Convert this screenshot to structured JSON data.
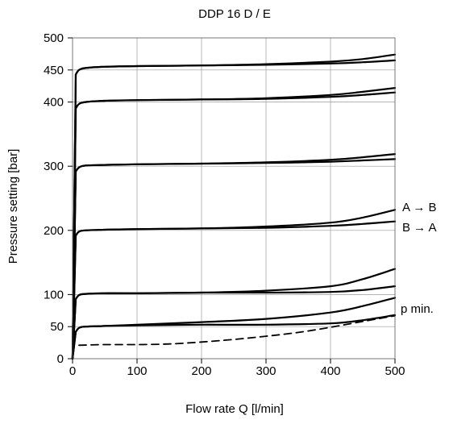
{
  "chart_data": {
    "type": "line",
    "title": "DDP 16 D / E",
    "xlabel": "Flow rate Q [l/min]",
    "ylabel": "Pressure setting [bar]",
    "xlim": [
      0,
      500
    ],
    "ylim": [
      0,
      500
    ],
    "x_ticks": [
      "0",
      "100",
      "200",
      "300",
      "400",
      "500"
    ],
    "y_ticks": [
      "0",
      "50",
      "100",
      "200",
      "300",
      "400",
      "450",
      "500"
    ],
    "grid": true,
    "annotations": {
      "a_to_b": "A → B",
      "b_to_a": "B → A",
      "p_min": "p min."
    },
    "series": [
      {
        "group": "450",
        "direction": "A→B",
        "style": "solid",
        "x": [
          0,
          5,
          10,
          20,
          50,
          100,
          200,
          300,
          400,
          450,
          500
        ],
        "y": [
          0,
          443,
          450,
          453,
          455,
          456,
          457,
          459,
          463,
          467,
          474
        ]
      },
      {
        "group": "450",
        "direction": "B→A",
        "style": "solid",
        "x": [
          0,
          5,
          10,
          20,
          50,
          100,
          200,
          300,
          400,
          450,
          500
        ],
        "y": [
          0,
          443,
          450,
          453,
          455,
          456,
          457,
          458,
          460,
          462,
          465
        ]
      },
      {
        "group": "400",
        "direction": "A→B",
        "style": "solid",
        "x": [
          0,
          5,
          10,
          20,
          50,
          100,
          200,
          300,
          400,
          450,
          500
        ],
        "y": [
          0,
          390,
          397,
          400,
          402,
          403,
          404,
          406,
          411,
          416,
          422
        ]
      },
      {
        "group": "400",
        "direction": "B→A",
        "style": "solid",
        "x": [
          0,
          5,
          10,
          20,
          50,
          100,
          200,
          300,
          400,
          450,
          500
        ],
        "y": [
          0,
          390,
          397,
          400,
          402,
          403,
          404,
          405,
          408,
          411,
          415
        ]
      },
      {
        "group": "300",
        "direction": "A→B",
        "style": "solid",
        "x": [
          0,
          5,
          10,
          20,
          50,
          100,
          200,
          300,
          400,
          450,
          500
        ],
        "y": [
          0,
          292,
          298,
          301,
          302,
          303,
          304,
          306,
          310,
          314,
          319
        ]
      },
      {
        "group": "300",
        "direction": "B→A",
        "style": "solid",
        "x": [
          0,
          5,
          10,
          20,
          50,
          100,
          200,
          300,
          400,
          450,
          500
        ],
        "y": [
          0,
          292,
          298,
          301,
          302,
          303,
          304,
          305,
          307,
          309,
          311
        ]
      },
      {
        "group": "200",
        "direction": "A→B",
        "style": "solid",
        "x": [
          0,
          5,
          10,
          20,
          50,
          100,
          200,
          300,
          400,
          450,
          500
        ],
        "y": [
          0,
          192,
          198,
          200,
          201,
          202,
          203,
          206,
          212,
          220,
          232
        ]
      },
      {
        "group": "200",
        "direction": "B→A",
        "style": "solid",
        "x": [
          0,
          5,
          10,
          20,
          50,
          100,
          200,
          300,
          400,
          450,
          500
        ],
        "y": [
          0,
          192,
          198,
          200,
          201,
          202,
          203,
          204,
          207,
          210,
          214
        ]
      },
      {
        "group": "100",
        "direction": "A→B",
        "style": "solid",
        "x": [
          0,
          5,
          10,
          20,
          50,
          100,
          200,
          300,
          400,
          450,
          500
        ],
        "y": [
          0,
          93,
          99,
          101,
          102,
          102,
          103,
          106,
          113,
          124,
          140
        ]
      },
      {
        "group": "100",
        "direction": "B→A",
        "style": "solid",
        "x": [
          0,
          5,
          10,
          20,
          50,
          100,
          200,
          300,
          400,
          450,
          500
        ],
        "y": [
          0,
          93,
          99,
          101,
          102,
          102,
          103,
          103,
          104,
          107,
          113
        ]
      },
      {
        "group": "50",
        "direction": "A→B",
        "style": "solid",
        "x": [
          0,
          5,
          10,
          20,
          50,
          100,
          200,
          300,
          400,
          450,
          500
        ],
        "y": [
          0,
          42,
          48,
          50,
          51,
          53,
          57,
          62,
          72,
          82,
          95
        ]
      },
      {
        "group": "50",
        "direction": "B→A",
        "style": "solid",
        "x": [
          0,
          5,
          10,
          20,
          50,
          100,
          200,
          300,
          400,
          450,
          500
        ],
        "y": [
          0,
          42,
          48,
          50,
          51,
          52,
          53,
          53,
          55,
          60,
          68
        ]
      },
      {
        "group": "p min.",
        "direction": "",
        "style": "dashed",
        "x": [
          10,
          50,
          100,
          150,
          200,
          250,
          300,
          350,
          400,
          450,
          500
        ],
        "y": [
          21,
          22,
          22,
          23,
          26,
          30,
          35,
          41,
          49,
          58,
          67
        ]
      }
    ]
  }
}
